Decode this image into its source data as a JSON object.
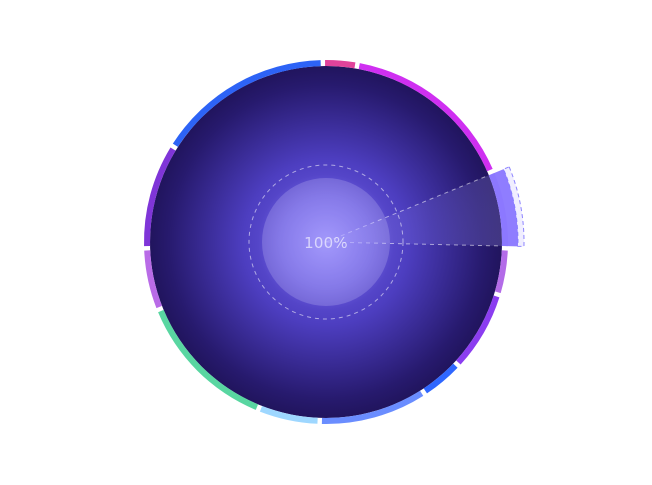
{
  "center_label": "100%",
  "colors": {
    "background": "#ffffff",
    "disc_center": "#6b5ee8",
    "disc_mid": "#3b2f97",
    "disc_edge": "#14093c",
    "core": "#b8b2ff",
    "separator": "#ffffff"
  },
  "ring_segments": [
    {
      "id": "seg-1",
      "color": "#a57dff",
      "highlighted": true
    },
    {
      "id": "seg-2",
      "color": "#b36be8",
      "highlighted": false
    },
    {
      "id": "seg-3",
      "color": "#8b3df0",
      "highlighted": false
    },
    {
      "id": "seg-4",
      "color": "#2f67ff",
      "highlighted": false
    },
    {
      "id": "seg-5",
      "color": "#6a8dff",
      "highlighted": false
    },
    {
      "id": "seg-6",
      "color": "#9ed7ff",
      "highlighted": false
    },
    {
      "id": "seg-7",
      "color": "#59d6a1",
      "highlighted": false
    },
    {
      "id": "seg-8",
      "color": "#b96be7",
      "highlighted": false
    },
    {
      "id": "seg-9",
      "color": "#7f35d8",
      "highlighted": false
    },
    {
      "id": "seg-10",
      "color": "#2d63f6",
      "highlighted": false
    },
    {
      "id": "seg-11",
      "color": "#e0439b",
      "highlighted": false
    },
    {
      "id": "seg-12",
      "color": "#cf2ff1",
      "highlighted": false
    }
  ]
}
